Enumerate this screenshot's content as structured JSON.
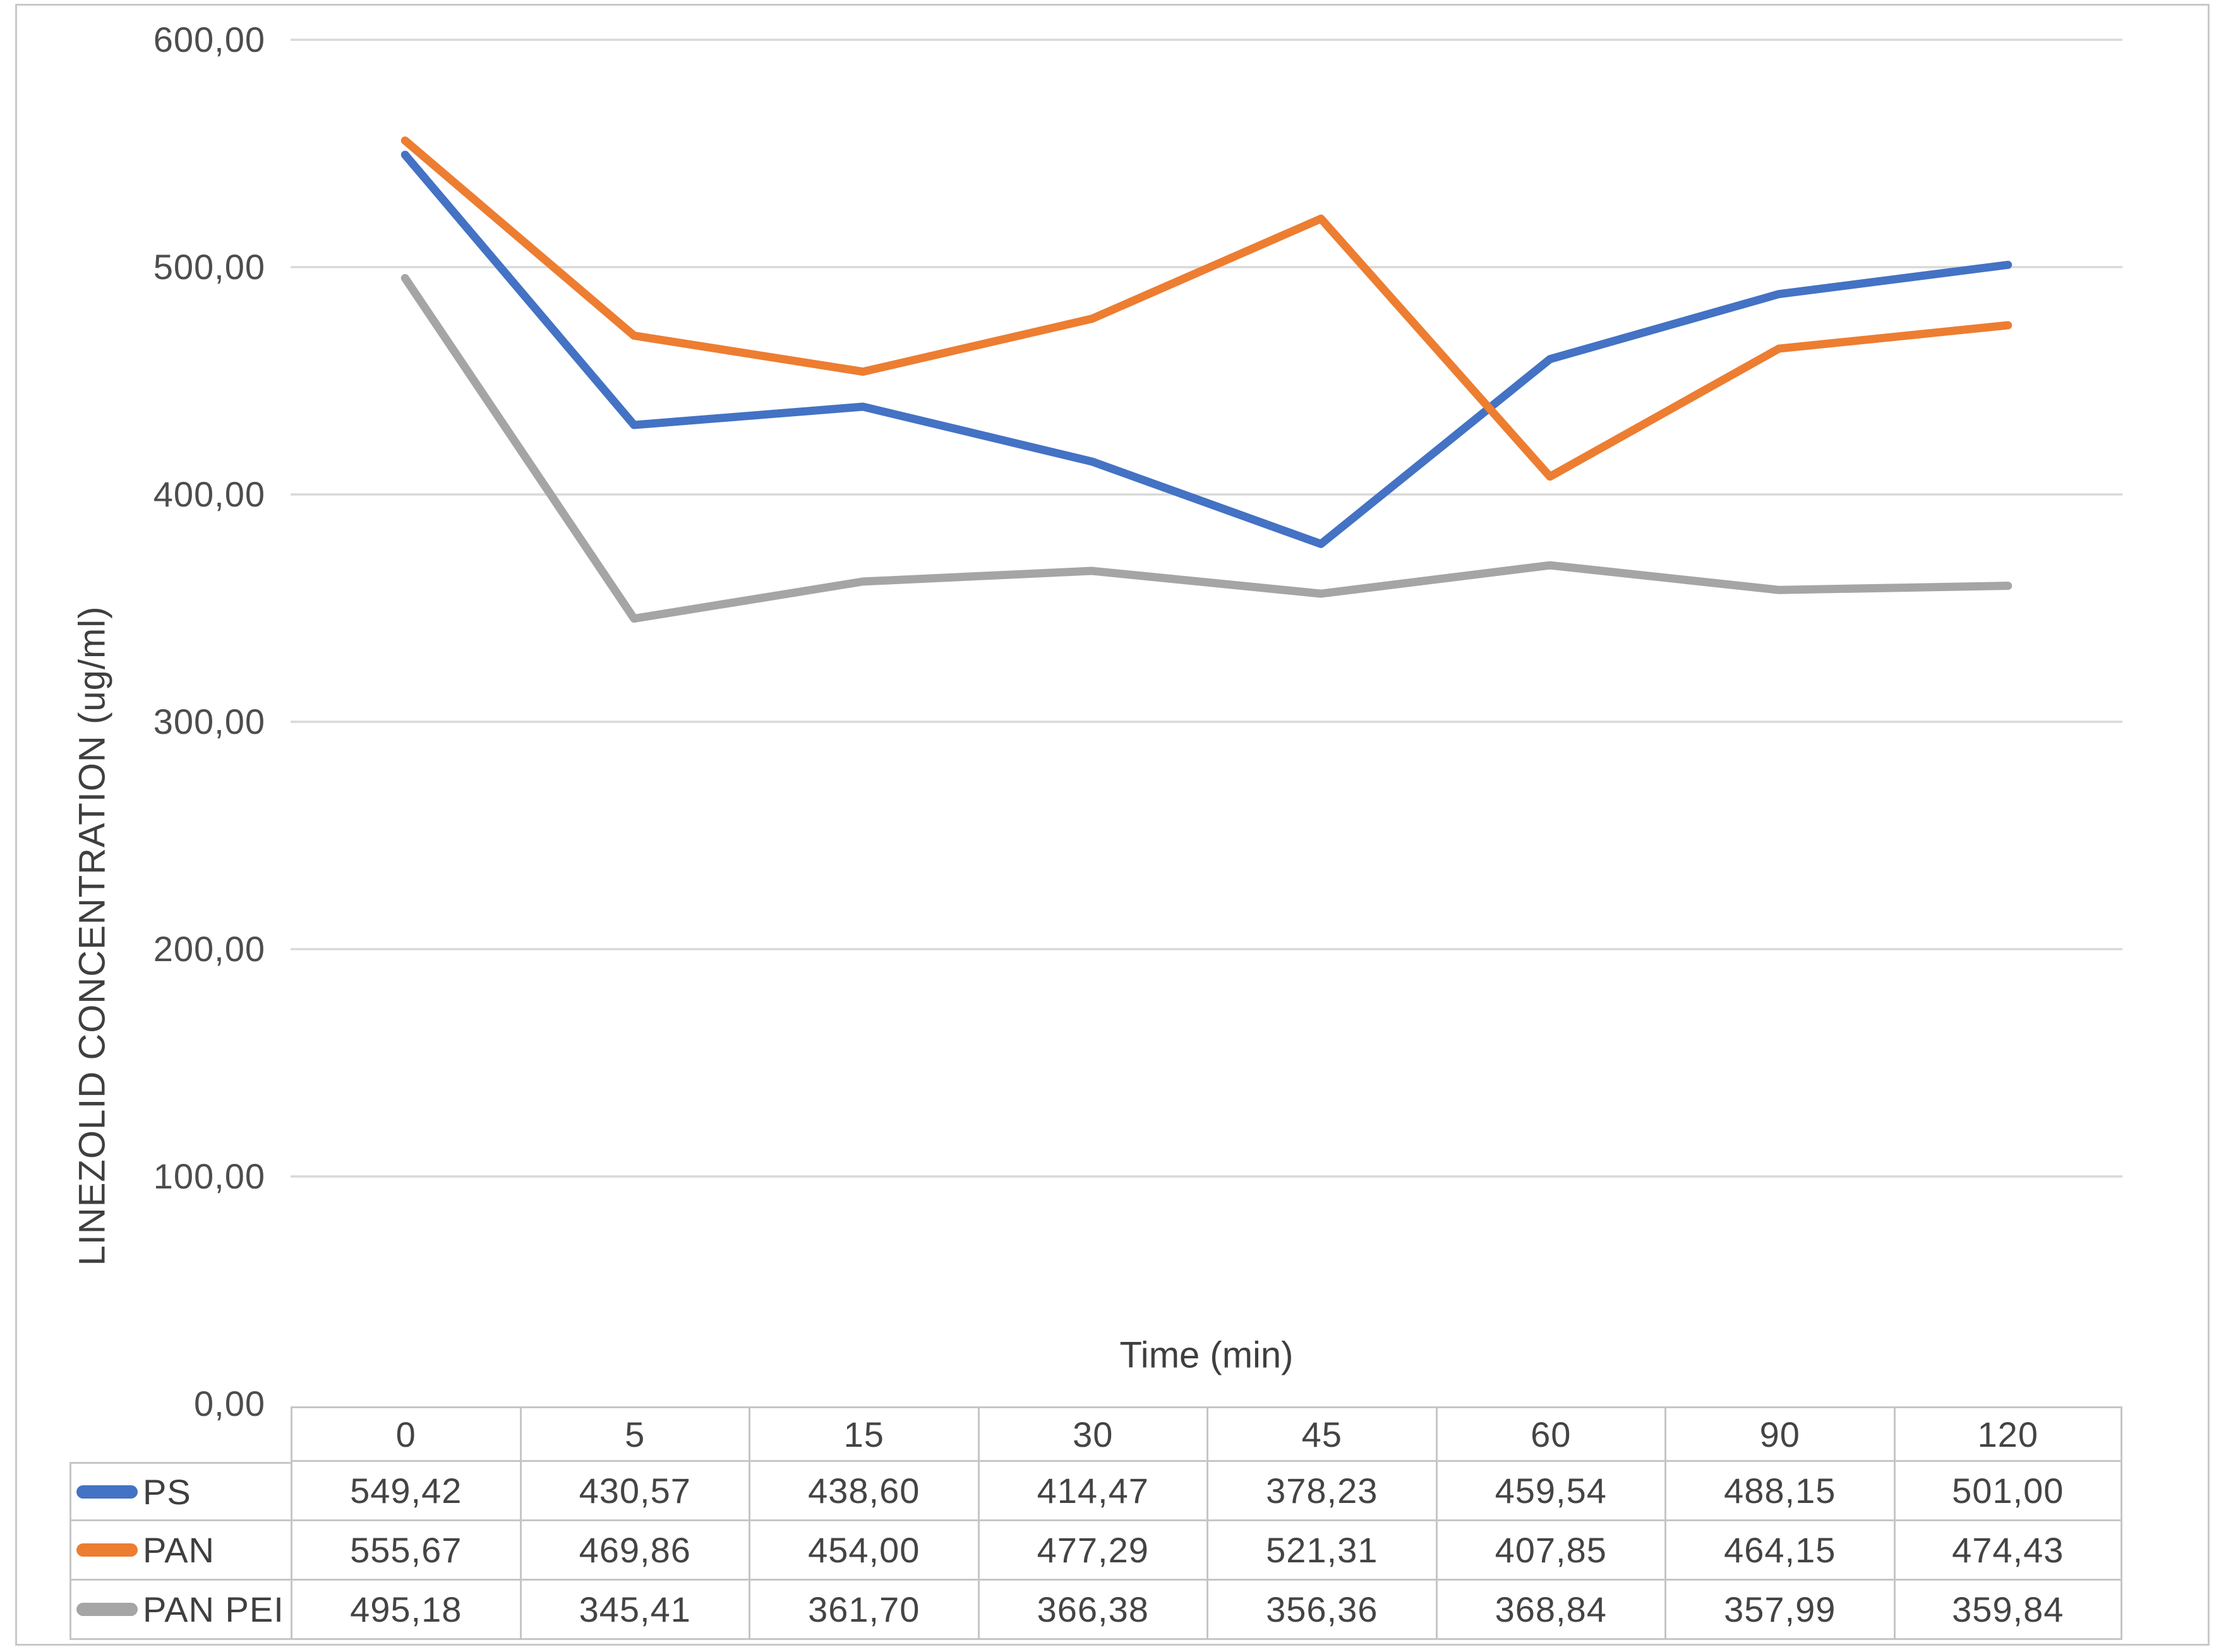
{
  "chart_data": {
    "type": "line",
    "title": "",
    "xlabel": "Time (min)",
    "ylabel": "LINEZOLID CONCENTRATION (ug/ml)",
    "x_categories": [
      "0",
      "5",
      "15",
      "30",
      "45",
      "60",
      "90",
      "120"
    ],
    "ylim": [
      0,
      600
    ],
    "ytick_step": 100,
    "ytick_labels_top_to_bottom": [
      "600,00",
      "500,00",
      "400,00",
      "300,00",
      "200,00",
      "100,00",
      "0,00"
    ],
    "grid": true,
    "legend_position": "data-table-left-column",
    "series": [
      {
        "name": "PS",
        "color": "#4472C4",
        "values": [
          549.42,
          430.57,
          438.6,
          414.47,
          378.23,
          459.54,
          488.15,
          501.0
        ],
        "display": [
          "549,42",
          "430,57",
          "438,60",
          "414,47",
          "378,23",
          "459,54",
          "488,15",
          "501,00"
        ]
      },
      {
        "name": "PAN",
        "color": "#ED7D31",
        "values": [
          555.67,
          469.86,
          454.0,
          477.29,
          521.31,
          407.85,
          464.15,
          474.43
        ],
        "display": [
          "555,67",
          "469,86",
          "454,00",
          "477,29",
          "521,31",
          "407,85",
          "464,15",
          "474,43"
        ]
      },
      {
        "name": "PAN PEI",
        "color": "#A5A5A5",
        "values": [
          495.18,
          345.41,
          361.7,
          366.38,
          356.36,
          368.84,
          357.99,
          359.84
        ],
        "display": [
          "495,18",
          "345,41",
          "361,70",
          "366,38",
          "356,36",
          "368,84",
          "357,99",
          "359,84"
        ]
      }
    ],
    "colors": {
      "gridline": "#D9D9D9",
      "table_border": "#C6C6C6",
      "axis_text": "#4D4D4D",
      "background": "#FFFFFF",
      "outer_border": "#C9C9C9"
    }
  }
}
